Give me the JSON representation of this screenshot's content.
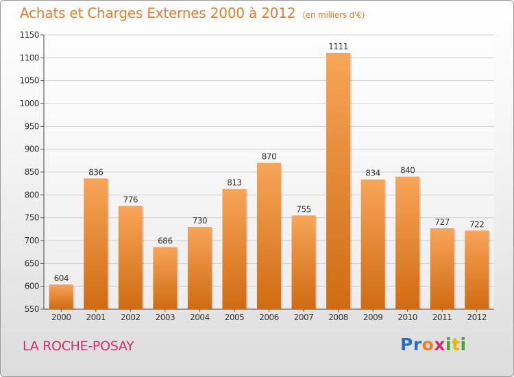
{
  "title": "Achats et Charges Externes 2000 à 2012",
  "unit": "(en milliers d'€)",
  "city": "LA ROCHE-POSAY",
  "logo": {
    "letters": [
      "P",
      "r",
      "o",
      "x",
      "i",
      "t",
      "i"
    ],
    "colors": [
      "#2a6ebf",
      "#2a6ebf",
      "#f07a26",
      "#d62a6f",
      "#3fa535",
      "#f0b000",
      "#3fa535"
    ]
  },
  "colors": {
    "bar_top": "#f7a558",
    "bar_bottom": "#d06b12",
    "title": "#f07a26",
    "city": "#d62a6f"
  },
  "chart_data": {
    "type": "bar",
    "title": "Achats et Charges Externes 2000 à 2012",
    "subtitle": "(en milliers d'€)",
    "categories": [
      "2000",
      "2001",
      "2002",
      "2003",
      "2004",
      "2005",
      "2006",
      "2007",
      "2008",
      "2009",
      "2010",
      "2011",
      "2012"
    ],
    "values": [
      604,
      836,
      776,
      686,
      730,
      813,
      870,
      755,
      1111,
      834,
      840,
      727,
      722
    ],
    "ylim": [
      550,
      1150
    ],
    "yticks": [
      550,
      600,
      650,
      700,
      750,
      800,
      850,
      900,
      950,
      1000,
      1050,
      1100,
      1150
    ],
    "grid": true,
    "xlabel": "",
    "ylabel": ""
  }
}
